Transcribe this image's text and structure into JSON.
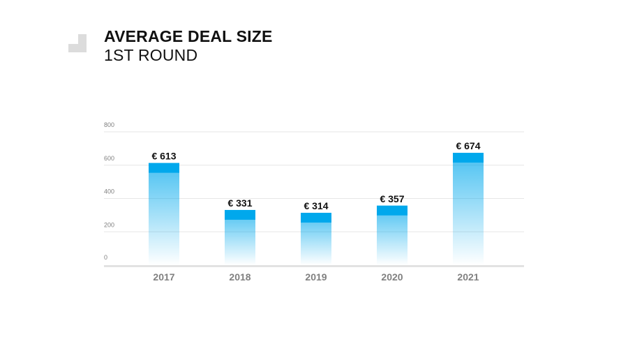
{
  "header": {
    "title": "AVERAGE DEAL SIZE",
    "subtitle": "1ST ROUND"
  },
  "colors": {
    "bar_top": "#00a8ec",
    "bar_bottom": "#ffffff",
    "grid": "#e6e6e6",
    "axis": "#e2e2e2",
    "tick_label": "#808080",
    "value_label": "#111111",
    "logo": "#dcdcdc"
  },
  "logo_icon": "stair-step-icon",
  "chart_data": {
    "type": "bar",
    "title": "",
    "xlabel": "",
    "ylabel": "",
    "categories": [
      "2017",
      "2018",
      "2019",
      "2020",
      "2021"
    ],
    "values": [
      613,
      331,
      314,
      357,
      674
    ],
    "data_labels": [
      "€ 613",
      "€ 331",
      "€ 314",
      "€ 357",
      "€ 674"
    ],
    "ylim": [
      0,
      800
    ],
    "yticks": [
      "0",
      "200",
      "400",
      "600",
      "800"
    ],
    "grid": true,
    "legend": "none"
  }
}
